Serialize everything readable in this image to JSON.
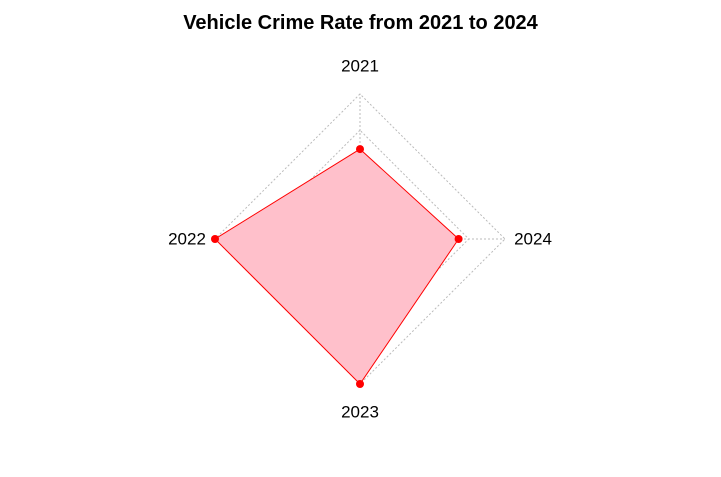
{
  "chart_data": {
    "type": "radar",
    "title": "Vehicle Crime Rate from 2021 to 2024",
    "categories": [
      "2021",
      "2022",
      "2023",
      "2024"
    ],
    "series": [
      {
        "values": [
          0.62,
          1.0,
          1.0,
          0.68
        ]
      }
    ],
    "range": [
      0,
      1
    ],
    "grid_levels": [
      0.25,
      0.5,
      0.75,
      1.0
    ],
    "grid": true,
    "colors": {
      "fill": "#FFC0CB",
      "stroke": "#FF0000",
      "point": "#FF0000",
      "grid": "#BBBBBB"
    }
  }
}
